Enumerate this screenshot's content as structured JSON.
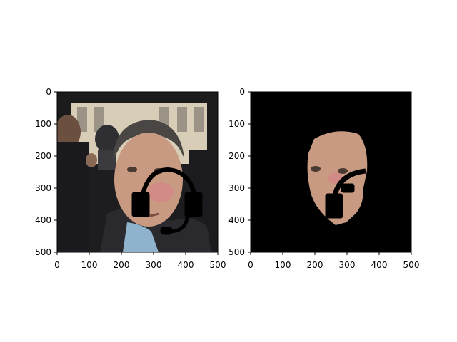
{
  "figure": {
    "panels": [
      {
        "name": "left-panel",
        "image_desc_name": "original-photo-with-headset-overlay",
        "x_ticks": [
          "0",
          "100",
          "200",
          "300",
          "400",
          "500"
        ],
        "y_ticks": [
          "0",
          "100",
          "200",
          "300",
          "400",
          "500"
        ]
      },
      {
        "name": "right-panel",
        "image_desc_name": "masked-face-with-headset-overlay",
        "x_ticks": [
          "0",
          "100",
          "200",
          "300",
          "400",
          "500"
        ],
        "y_ticks": [
          "0",
          "100",
          "200",
          "300",
          "400",
          "500"
        ]
      }
    ],
    "colors": {
      "axes": "#000000",
      "background": "#ffffff",
      "mask_background": "#000000",
      "skin": "#c89a82",
      "jacket": "#2a2a2e",
      "shirt": "#8fb3cc",
      "facade": "#d8ceb8",
      "headset": "#000000"
    }
  }
}
